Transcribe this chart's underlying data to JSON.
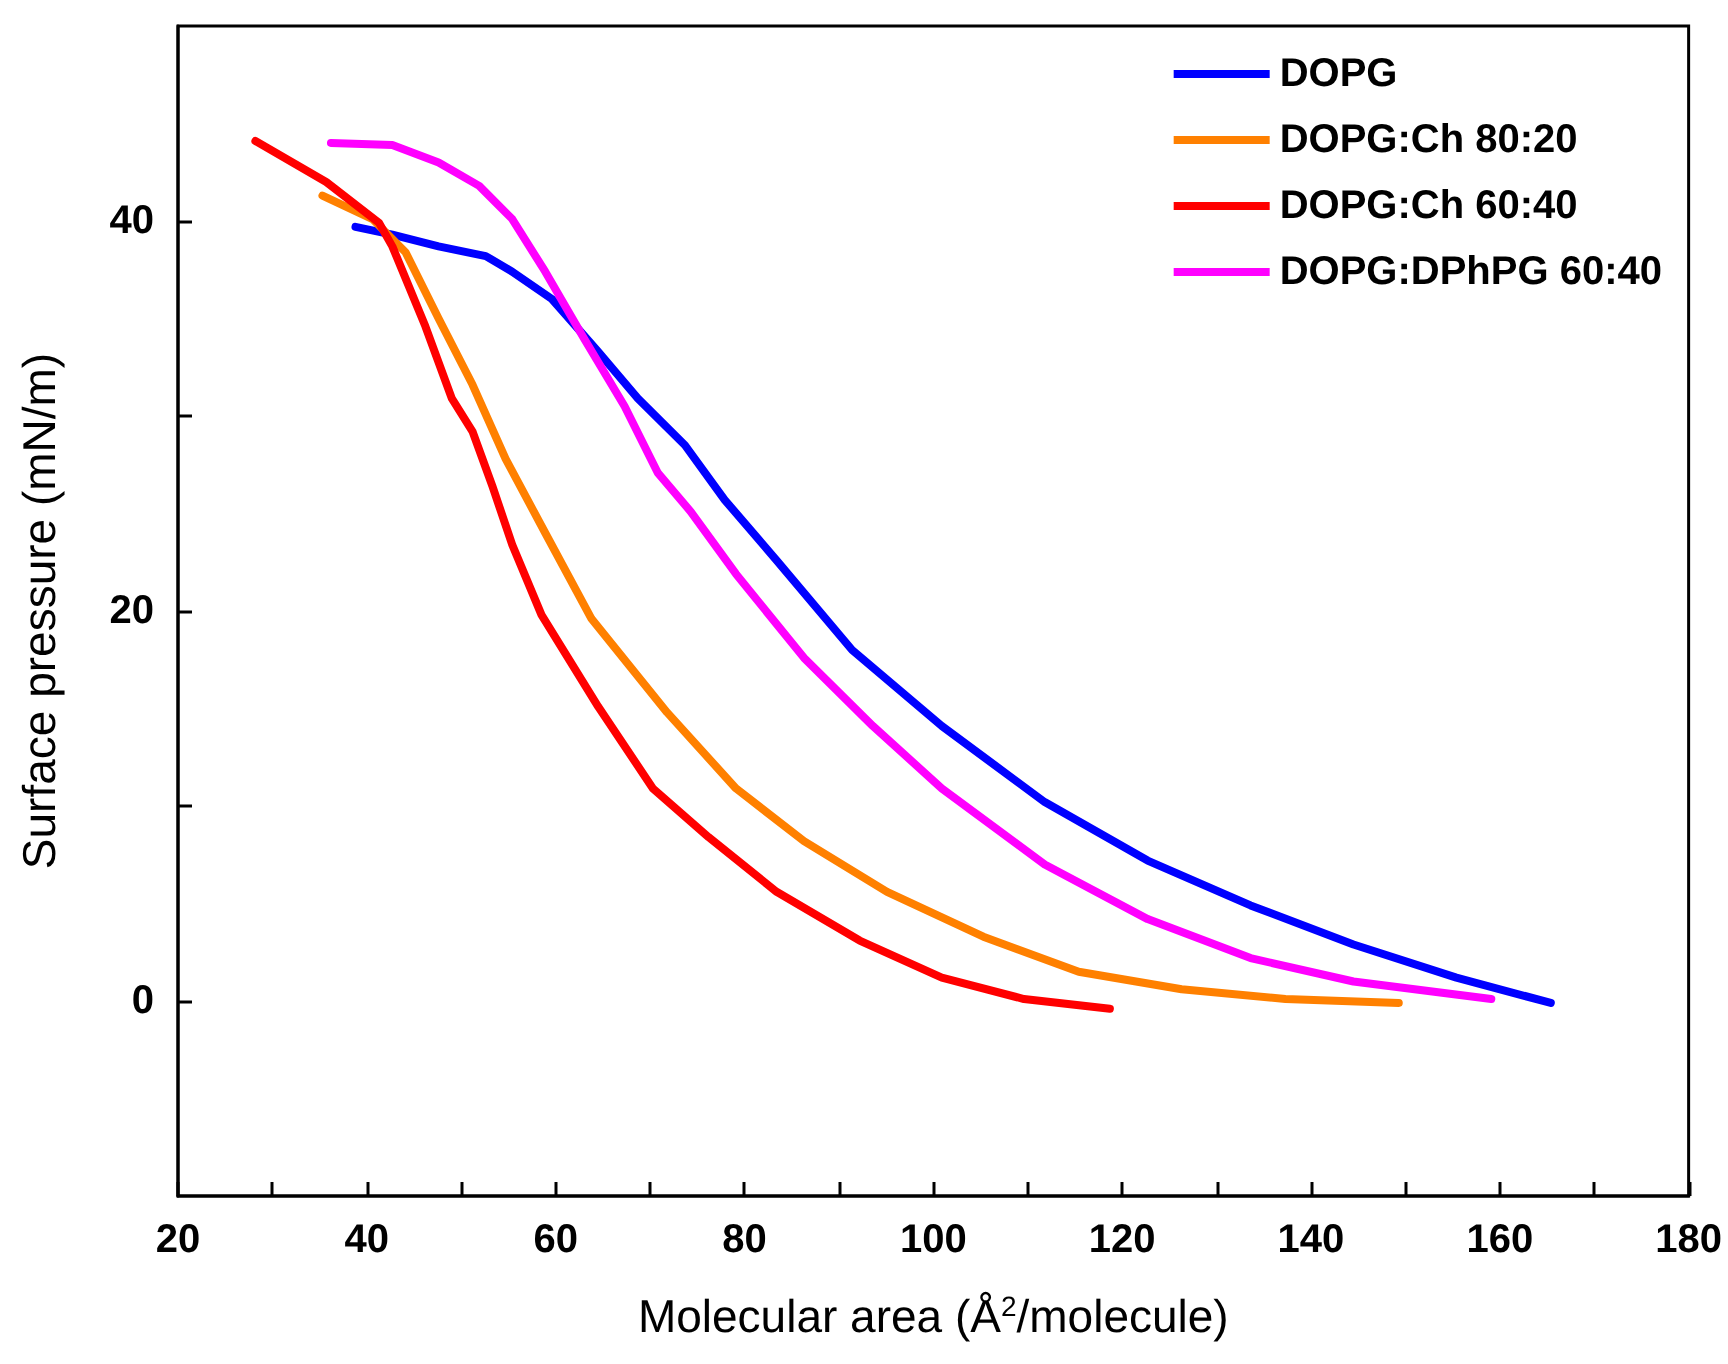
{
  "chart_data": {
    "type": "line",
    "xlabel": "Molecular area (Å$^{2}$/molecule)",
    "ylabel": "Surface pressure (mN/m)",
    "xlim": [
      20,
      180
    ],
    "xticks": [
      20,
      {
        "value": 30,
        "label": null
      },
      40,
      {
        "value": 50,
        "label": null
      },
      60,
      {
        "value": 70,
        "label": null
      },
      80,
      {
        "value": 90,
        "label": null
      },
      100,
      {
        "value": 110,
        "label": null
      },
      120,
      {
        "value": 130,
        "label": null
      },
      140,
      {
        "value": 150,
        "label": null
      },
      160,
      {
        "value": 170,
        "label": null
      },
      180
    ],
    "ylim": [
      -10,
      50
    ],
    "yticks": [
      0,
      {
        "value": 10,
        "label": null
      },
      20,
      {
        "value": 30,
        "label": null
      },
      40
    ],
    "grid": false,
    "legend": "top right",
    "marker": "none",
    "line_style": "solid",
    "series": [
      {
        "name": "DOPG",
        "color": "#0000ff",
        "x": [
          38.8,
          42.7,
          47.6,
          52.6,
          55.4,
          59.6,
          64.5,
          68.7,
          73.7,
          77.9,
          83.4,
          91.4,
          100.9,
          111.8,
          122.7,
          133.6,
          144.5,
          155.4,
          165.4
        ],
        "values": [
          39.7,
          39.3,
          38.7,
          38.2,
          37.4,
          36.0,
          33.3,
          30.9,
          28.5,
          25.7,
          22.6,
          18.0,
          14.1,
          10.2,
          7.2,
          4.9,
          2.9,
          1.2,
          -0.1
        ]
      },
      {
        "name": "DOPG:Ch 80:20",
        "color": "#ff8000",
        "x": [
          35.3,
          40.6,
          44.1,
          47.6,
          51.2,
          54.7,
          58.9,
          63.8,
          71.8,
          79.1,
          86.3,
          95.1,
          105.3,
          115.4,
          126.3,
          137.3,
          149.3
        ],
        "values": [
          41.3,
          40.1,
          38.4,
          35.0,
          31.6,
          27.8,
          24.0,
          19.6,
          14.8,
          10.9,
          8.2,
          5.6,
          3.3,
          1.5,
          0.6,
          0.1,
          -0.1
        ]
      },
      {
        "name": "DOPG:Ch 60:40",
        "color": "#ff0000",
        "x": [
          28.2,
          35.7,
          41.3,
          42.7,
          46.2,
          49.0,
          51.2,
          53.3,
          55.4,
          58.5,
          64.5,
          70.3,
          76.2,
          83.4,
          92.2,
          100.9,
          109.6,
          118.7
        ],
        "values": [
          44.1,
          42.0,
          39.9,
          38.7,
          34.6,
          30.9,
          29.2,
          26.4,
          23.4,
          19.8,
          15.1,
          10.9,
          8.4,
          5.6,
          3.1,
          1.2,
          0.1,
          -0.4
        ]
      },
      {
        "name": "DOPG:DPhPG 60:40",
        "color": "#ff00ff",
        "x": [
          36.2,
          42.7,
          47.6,
          51.9,
          55.4,
          58.9,
          63.1,
          67.3,
          70.8,
          74.3,
          79.1,
          86.3,
          93.6,
          100.9,
          111.8,
          122.7,
          133.6,
          144.5,
          159.1
        ],
        "values": [
          44.0,
          43.9,
          43.0,
          41.8,
          40.1,
          37.4,
          33.9,
          30.5,
          27.1,
          25.1,
          21.9,
          17.6,
          14.1,
          10.9,
          7.0,
          4.2,
          2.2,
          1.0,
          0.1
        ]
      }
    ]
  }
}
